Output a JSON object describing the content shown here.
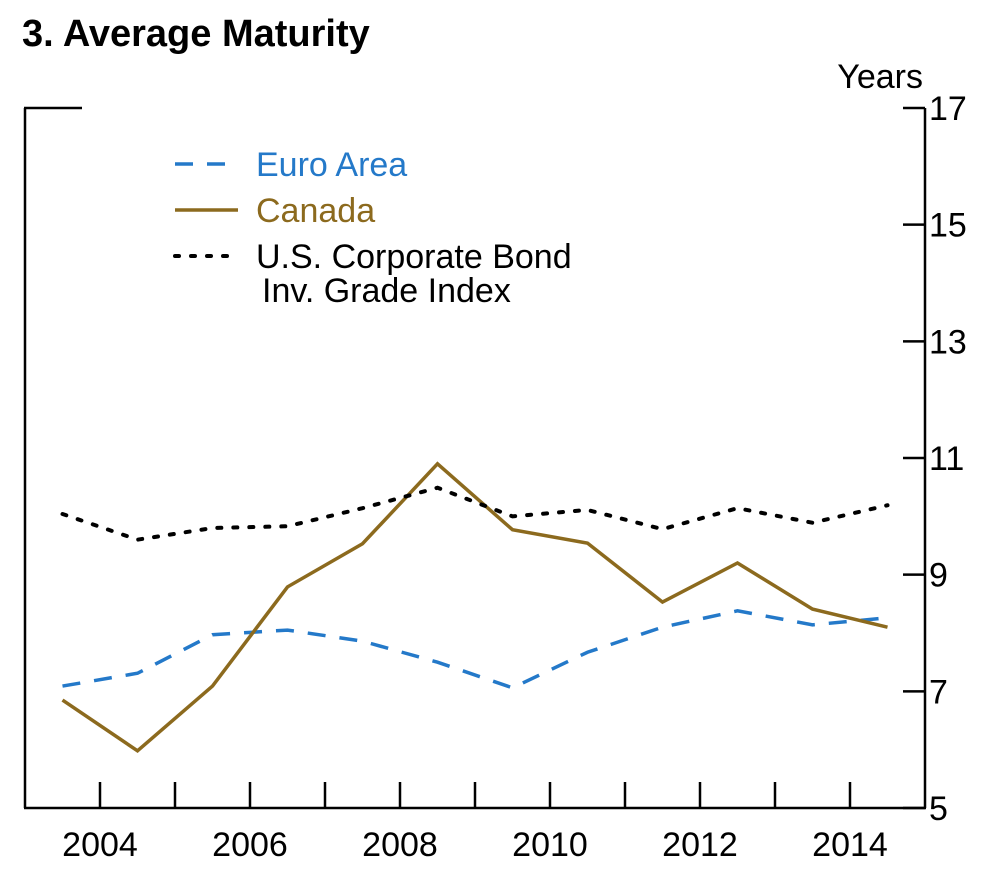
{
  "chart_data": {
    "type": "line",
    "title": "3. Average Maturity",
    "y_unit": "Years",
    "categories": [
      null,
      "2004",
      null,
      "2006",
      null,
      "2008",
      null,
      "2010",
      null,
      "2012",
      null,
      "2014"
    ],
    "series": [
      {
        "name": "Euro Area",
        "color": "#2479c9",
        "dash": "dashed",
        "values": [
          7.09,
          7.31,
          7.97,
          8.05,
          7.86,
          7.5,
          7.06,
          7.67,
          8.1,
          8.38,
          8.14,
          8.26
        ]
      },
      {
        "name": "Canada",
        "color": "#8c6a1e",
        "dash": "solid",
        "values": [
          6.85,
          5.98,
          7.09,
          8.79,
          9.53,
          10.9,
          9.77,
          9.54,
          8.53,
          9.2,
          8.41,
          8.1
        ]
      },
      {
        "name": "U.S. Corporate Bond\nInv. Grade Index",
        "color": "#000000",
        "dash": "dotted",
        "values": [
          10.04,
          9.6,
          9.8,
          9.83,
          10.14,
          10.49,
          10.0,
          10.11,
          9.78,
          10.14,
          9.89,
          10.19
        ]
      }
    ],
    "ylim": [
      5,
      17
    ],
    "yticks": [
      5,
      7,
      9,
      11,
      13,
      15,
      17
    ]
  }
}
